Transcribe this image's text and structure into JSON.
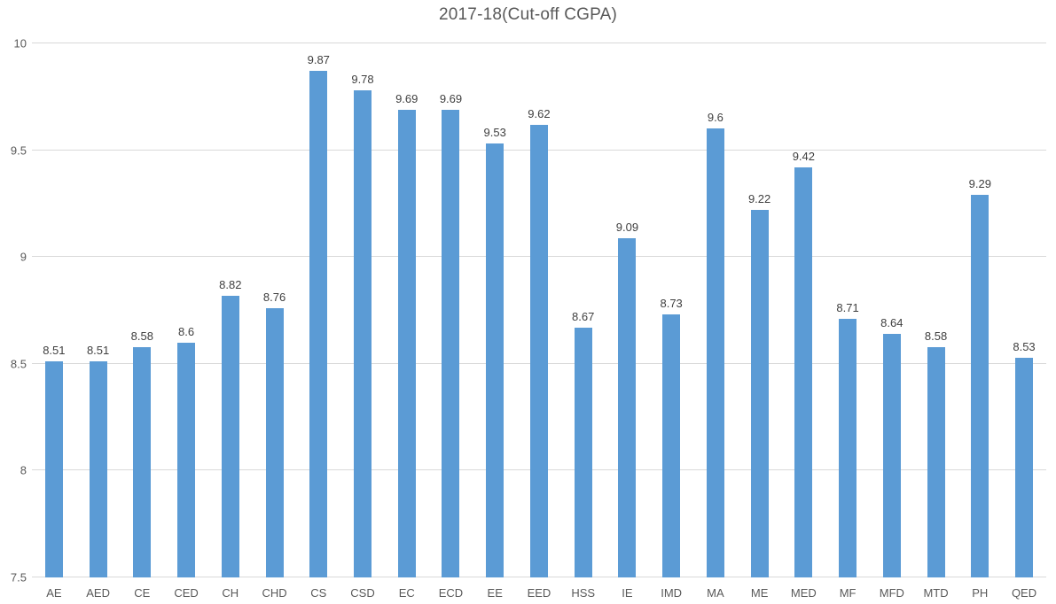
{
  "chart_data": {
    "type": "bar",
    "title": "2017-18(Cut-off CGPA)",
    "categories": [
      "AE",
      "AED",
      "CE",
      "CED",
      "CH",
      "CHD",
      "CS",
      "CSD",
      "EC",
      "ECD",
      "EE",
      "EED",
      "HSS",
      "IE",
      "IMD",
      "MA",
      "ME",
      "MED",
      "MF",
      "MFD",
      "MTD",
      "PH",
      "QED"
    ],
    "values": [
      8.51,
      8.51,
      8.58,
      8.6,
      8.82,
      8.76,
      9.87,
      9.78,
      9.69,
      9.69,
      9.53,
      9.62,
      8.67,
      9.09,
      8.73,
      9.6,
      9.22,
      9.42,
      8.71,
      8.64,
      8.58,
      9.29,
      8.53
    ],
    "value_labels": [
      "8.51",
      "8.51",
      "8.58",
      "8.6",
      "8.82",
      "8.76",
      "9.87",
      "9.78",
      "9.69",
      "9.69",
      "9.53",
      "9.62",
      "8.67",
      "9.09",
      "8.73",
      "9.6",
      "9.22",
      "9.42",
      "8.71",
      "8.64",
      "8.58",
      "9.29",
      "8.53"
    ],
    "xlabel": "",
    "ylabel": "",
    "ylim": [
      7.5,
      10
    ],
    "y_ticks": [
      "10",
      "9.5",
      "9",
      "8.5",
      "8",
      "7.5"
    ],
    "y_tick_values": [
      10,
      9.5,
      9,
      8.5,
      8,
      7.5
    ],
    "grid": true,
    "legend_position": "none",
    "colors": {
      "bar": "#5b9bd5",
      "gridline": "#d9d9d9",
      "axis_text": "#595959",
      "title_text": "#595959",
      "value_text": "#3f3f3f"
    }
  }
}
